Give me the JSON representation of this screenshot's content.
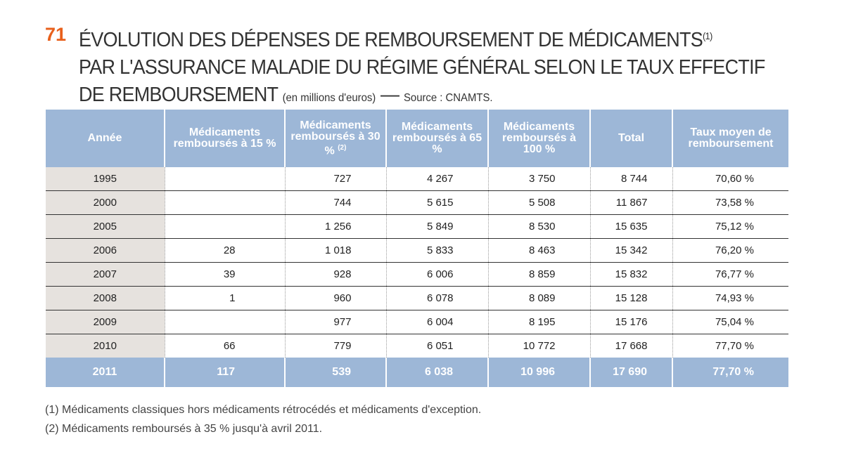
{
  "title": {
    "number": "71",
    "line1": "ÉVOLUTION DES DÉPENSES DE REMBOURSEMENT DE MÉDICAMENTS",
    "line1_note": "(1)",
    "line2": "PAR L'ASSURANCE MALADIE DU RÉGIME GÉNÉRAL SELON LE TAUX EFFECTIF",
    "line3": "DE REMBOURSEMENT",
    "unit": "(en millions d'euros)",
    "dash": "—",
    "source": "Source : CNAMTS."
  },
  "table": {
    "headers": [
      "Année",
      "Médicaments remboursés à 15 %",
      "Médicaments remboursés à 30 %",
      "Médicaments remboursés à 65 %",
      "Médicaments remboursés à 100 %",
      "Total",
      "Taux moyen de remboursement"
    ],
    "header_note": "(2)",
    "rows": [
      [
        "1995",
        "",
        "727",
        "4 267",
        "3 750",
        "8 744",
        "70,60 %"
      ],
      [
        "2000",
        "",
        "744",
        "5 615",
        "5 508",
        "11 867",
        "73,58 %"
      ],
      [
        "2005",
        "",
        "1 256",
        "5 849",
        "8 530",
        "15 635",
        "75,12 %"
      ],
      [
        "2006",
        "28",
        "1 018",
        "5 833",
        "8 463",
        "15 342",
        "76,20 %"
      ],
      [
        "2007",
        "39",
        "928",
        "6 006",
        "8 859",
        "15 832",
        "76,77 %"
      ],
      [
        "2008",
        "1",
        "960",
        "6 078",
        "8 089",
        "15 128",
        "74,93 %"
      ],
      [
        "2009",
        "",
        "977",
        "6 004",
        "8 195",
        "15 176",
        "75,04 %"
      ],
      [
        "2010",
        "66",
        "779",
        "6 051",
        "10 772",
        "17 668",
        "77,70 %"
      ],
      [
        "2011",
        "117",
        "539",
        "6 038",
        "10 996",
        "17 690",
        "77,70 %"
      ]
    ]
  },
  "notes": [
    "(1) Médicaments classiques hors médicaments rétrocédés et médicaments d'exception.",
    "(2) Médicaments remboursés à 35 % jusqu'à avril 2011."
  ],
  "colors": {
    "accent": "#e8601c",
    "header": "#9db7d7",
    "year_bg": "#e6e2de"
  }
}
